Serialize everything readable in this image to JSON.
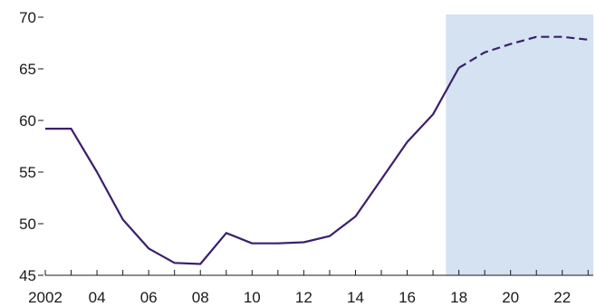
{
  "chart_data": {
    "type": "line",
    "title": "",
    "xlabel": "",
    "ylabel": "",
    "ylim": [
      45,
      70
    ],
    "xlim": [
      2002,
      2023.2
    ],
    "y_ticks": [
      45,
      50,
      55,
      60,
      65,
      70
    ],
    "x_ticks": [
      {
        "value": 2002,
        "label": "2002"
      },
      {
        "value": 2004,
        "label": "04"
      },
      {
        "value": 2006,
        "label": "06"
      },
      {
        "value": 2008,
        "label": "08"
      },
      {
        "value": 2010,
        "label": "10"
      },
      {
        "value": 2012,
        "label": "12"
      },
      {
        "value": 2014,
        "label": "14"
      },
      {
        "value": 2016,
        "label": "16"
      },
      {
        "value": 2018,
        "label": "18"
      },
      {
        "value": 2020,
        "label": "20"
      },
      {
        "value": 2022,
        "label": "22"
      }
    ],
    "projection_shading": {
      "x_start": 2017.5,
      "x_end": 2023.2,
      "color": "#d4e2f1"
    },
    "line_color": "#3b1f6b",
    "series": [
      {
        "style": "solid",
        "x": [
          2002,
          2003,
          2004,
          2005,
          2006,
          2007,
          2008,
          2009,
          2010,
          2011,
          2012,
          2013,
          2014,
          2015,
          2016,
          2017,
          2018
        ],
        "y": [
          59.2,
          59.2,
          55.0,
          50.4,
          47.6,
          46.2,
          46.1,
          49.1,
          48.1,
          48.1,
          48.2,
          48.8,
          50.7,
          54.3,
          57.9,
          60.6,
          65.1
        ]
      },
      {
        "style": "dashed",
        "x": [
          2018,
          2019,
          2020,
          2021,
          2022,
          2023.1
        ],
        "y": [
          65.1,
          66.6,
          67.4,
          68.1,
          68.1,
          67.8
        ]
      }
    ]
  }
}
